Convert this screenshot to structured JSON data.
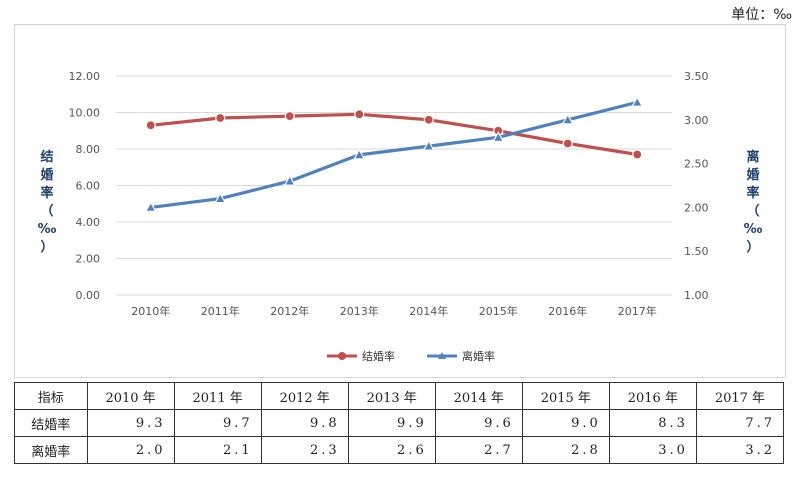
{
  "unit_label": "单位：‰",
  "chart_data": {
    "type": "line",
    "categories": [
      "2010年",
      "2011年",
      "2012年",
      "2013年",
      "2014年",
      "2015年",
      "2016年",
      "2017年"
    ],
    "series": [
      {
        "name": "结婚率",
        "axis": "left",
        "color": "#c0504d",
        "marker": "circle",
        "values": [
          9.3,
          9.7,
          9.8,
          9.9,
          9.6,
          9.0,
          8.3,
          7.7
        ]
      },
      {
        "name": "离婚率",
        "axis": "right",
        "color": "#4f81bd",
        "marker": "triangle",
        "values": [
          2.0,
          2.1,
          2.3,
          2.6,
          2.7,
          2.8,
          3.0,
          3.2
        ]
      }
    ],
    "y_left": {
      "label": "结婚率（‰）",
      "min": 0,
      "max": 12,
      "ticks": [
        "0.00",
        "2.00",
        "4.00",
        "6.00",
        "8.00",
        "10.00",
        "12.00"
      ]
    },
    "y_right": {
      "label": "离婚率（‰）",
      "min": 1,
      "max": 3.5,
      "ticks": [
        "1.00",
        "1.50",
        "2.00",
        "2.50",
        "3.00",
        "3.50"
      ]
    },
    "grid": true,
    "legend_position": "bottom"
  },
  "table": {
    "header": [
      "指标",
      "2010 年",
      "2011 年",
      "2012 年",
      "2013 年",
      "2014 年",
      "2015 年",
      "2016 年",
      "2017 年"
    ],
    "rows": [
      [
        "结婚率",
        "9.3",
        "9.7",
        "9.8",
        "9.9",
        "9.6",
        "9.0",
        "8.3",
        "7.7"
      ],
      [
        "离婚率",
        "2.0",
        "2.1",
        "2.3",
        "2.6",
        "2.7",
        "2.8",
        "3.0",
        "3.2"
      ]
    ]
  }
}
